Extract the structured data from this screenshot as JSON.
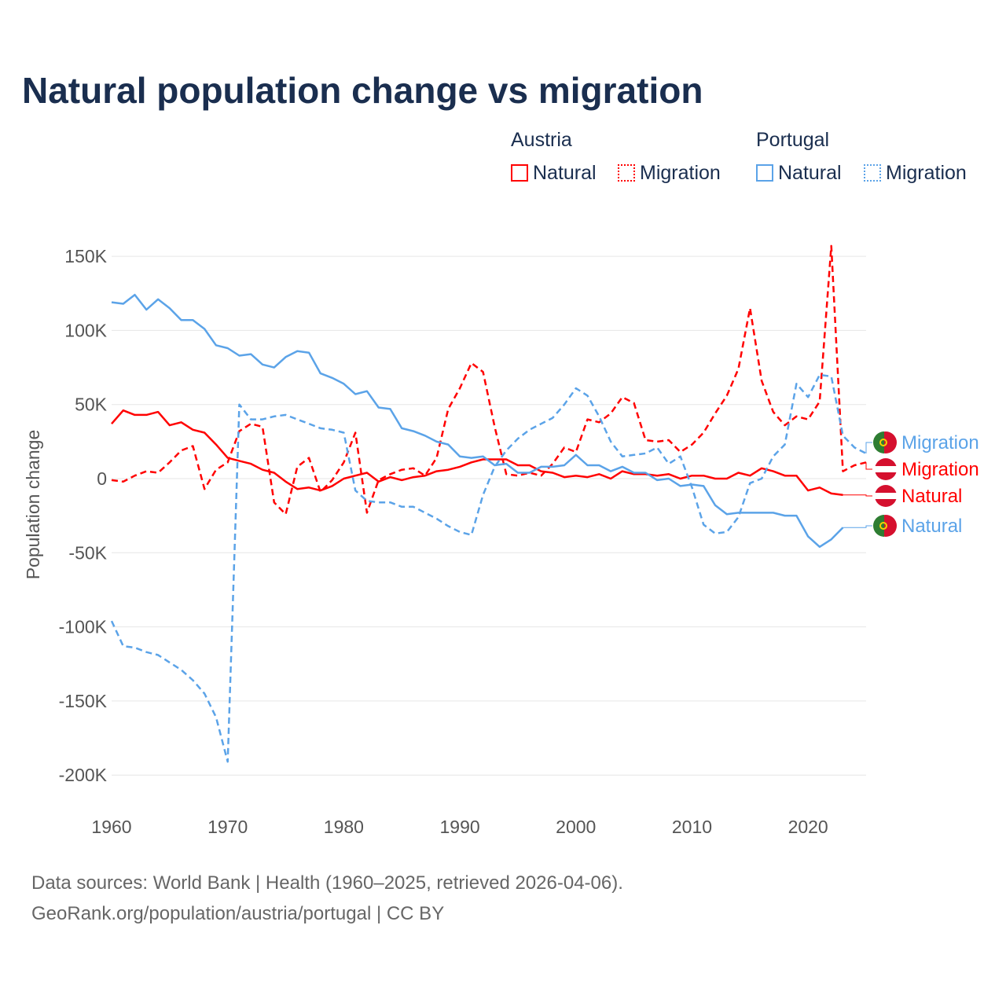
{
  "chart_data": {
    "type": "line",
    "title": "Natural population change vs migration",
    "ylabel": "Population change",
    "xlabel": "",
    "xlim": [
      1960,
      2025
    ],
    "ylim": [
      -200000,
      160000
    ],
    "x_ticks": [
      "1960",
      "1970",
      "1980",
      "1990",
      "2000",
      "2010",
      "2020"
    ],
    "y_ticks": [
      {
        "v": 150000,
        "l": "150K"
      },
      {
        "v": 100000,
        "l": "100K"
      },
      {
        "v": 50000,
        "l": "50K"
      },
      {
        "v": 0,
        "l": "0"
      },
      {
        "v": -50000,
        "l": "-50K"
      },
      {
        "v": -100000,
        "l": "-100K"
      },
      {
        "v": -150000,
        "l": "-150K"
      },
      {
        "v": -200000,
        "l": "-200K"
      }
    ],
    "legend": {
      "groups": [
        {
          "name": "Austria",
          "items": [
            "Natural",
            "Migration"
          ]
        },
        {
          "name": "Portugal",
          "items": [
            "Natural",
            "Migration"
          ]
        }
      ],
      "placement": "top-right"
    },
    "start_year": 1960,
    "series": [
      {
        "name": "Austria Natural",
        "label": "Natural",
        "color": "#ff0000",
        "dash": false,
        "values_k": [
          37,
          46,
          43,
          43,
          45,
          36,
          38,
          33,
          31,
          23,
          14,
          12,
          10,
          6,
          4,
          -2,
          -7,
          -6,
          -8,
          -5,
          0,
          2,
          4,
          -2,
          1,
          -1,
          1,
          2,
          5,
          6,
          8,
          11,
          13,
          13,
          13,
          9,
          9,
          5,
          4,
          1,
          2,
          1,
          3,
          0,
          5,
          3,
          3,
          2,
          3,
          0,
          2,
          2,
          0,
          0,
          4,
          2,
          7,
          5,
          2,
          2,
          -8,
          -6,
          -10,
          -11
        ]
      },
      {
        "name": "Austria Migration",
        "label": "Migration",
        "color": "#ff0000",
        "dash": true,
        "values_k": [
          -1,
          -2,
          2,
          5,
          4,
          11,
          19,
          22,
          -7,
          6,
          11,
          32,
          37,
          35,
          -16,
          -24,
          8,
          14,
          -9,
          -1,
          11,
          31,
          -23,
          -1,
          3,
          6,
          7,
          2,
          14,
          47,
          61,
          78,
          72,
          35,
          3,
          2,
          4,
          2,
          10,
          21,
          18,
          40,
          38,
          44,
          55,
          51,
          26,
          25,
          26,
          18,
          23,
          31,
          44,
          56,
          74,
          115,
          66,
          45,
          36,
          42,
          40,
          52,
          157,
          5,
          9,
          11
        ]
      },
      {
        "name": "Portugal Natural",
        "label": "Natural",
        "color": "#5ba3e8",
        "dash": false,
        "values_k": [
          119,
          118,
          124,
          114,
          121,
          115,
          107,
          107,
          101,
          90,
          88,
          83,
          84,
          77,
          75,
          82,
          86,
          85,
          71,
          68,
          64,
          57,
          59,
          48,
          47,
          34,
          32,
          29,
          25,
          23,
          15,
          14,
          15,
          9,
          10,
          4,
          4,
          8,
          8,
          9,
          16,
          9,
          9,
          5,
          8,
          4,
          4,
          -1,
          0,
          -5,
          -4,
          -5,
          -18,
          -24,
          -23,
          -23,
          -23,
          -23,
          -25,
          -25,
          -39,
          -46,
          -41,
          -33
        ]
      },
      {
        "name": "Portugal Migration",
        "label": "Migration",
        "color": "#5ba3e8",
        "dash": true,
        "values_k": [
          -96,
          -113,
          -114,
          -117,
          -119,
          -124,
          -129,
          -136,
          -145,
          -161,
          -191,
          50,
          40,
          40,
          42,
          43,
          40,
          37,
          34,
          33,
          31,
          -8,
          -15,
          -16,
          -16,
          -19,
          -19,
          -23,
          -27,
          -32,
          -36,
          -38,
          -11,
          8,
          19,
          27,
          33,
          37,
          41,
          50,
          61,
          56,
          42,
          25,
          15,
          16,
          17,
          21,
          10,
          15,
          -6,
          -31,
          -37,
          -36,
          -26,
          -3,
          0,
          15,
          23,
          64,
          55,
          70,
          69,
          29,
          21,
          17
        ]
      }
    ],
    "end_labels": [
      {
        "series": 3,
        "text": "Migration",
        "flag": "portugal"
      },
      {
        "series": 1,
        "text": "Migration",
        "flag": "austria"
      },
      {
        "series": 0,
        "text": "Natural",
        "flag": "austria"
      },
      {
        "series": 2,
        "text": "Natural",
        "flag": "portugal"
      }
    ]
  },
  "footer": {
    "line1": "Data sources: World Bank | Health (1960–2025, retrieved 2026-04-06).",
    "line2": "GeoRank.org/population/austria/portugal | CC BY"
  }
}
